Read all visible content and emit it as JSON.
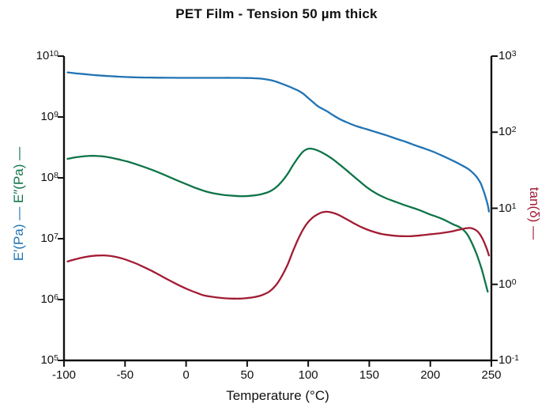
{
  "title": "PET Film - Tension 50 µm thick",
  "colors": {
    "storage": "#2173b3",
    "loss": "#0e7448",
    "tan_delta": "#a21b33",
    "axis": "#111111",
    "background": "#ffffff"
  },
  "axes": {
    "x": {
      "label": "Temperature (°C)",
      "ticks": [
        {
          "label": "-100",
          "value": -100
        },
        {
          "label": "-50",
          "value": -50
        },
        {
          "label": "0",
          "value": 0
        },
        {
          "label": "50",
          "value": 50
        },
        {
          "label": "100",
          "value": 100
        },
        {
          "label": "150",
          "value": 150
        },
        {
          "label": "200",
          "value": 200
        },
        {
          "label": "250",
          "value": 250
        }
      ]
    },
    "left": {
      "parts": [
        {
          "text": "E′(Pa) —",
          "series": "storage",
          "color": "#2173b3"
        },
        {
          "text": "E″(Pa) —",
          "series": "loss",
          "color": "#0e7448"
        }
      ],
      "exponents": [
        10,
        9,
        8,
        7,
        6,
        5
      ],
      "log_range": [
        5,
        10
      ]
    },
    "right": {
      "label": "tan(δ) —",
      "exponents": [
        3,
        2,
        1,
        0,
        -1
      ],
      "log_range": [
        -1,
        3
      ]
    }
  },
  "chart_data": {
    "type": "line",
    "title": "PET Film - Tension 50 µm thick",
    "xlabel": "Temperature (°C)",
    "x_range": [
      -100,
      250
    ],
    "grid": false,
    "legend": "axis-label-colored-dashes",
    "axes": {
      "left": {
        "label": "E′(Pa), E″(Pa)",
        "scale": "log",
        "range_log10": [
          5,
          10
        ]
      },
      "right": {
        "label": "tan(δ)",
        "scale": "log",
        "range_log10": [
          -1,
          3
        ]
      }
    },
    "series": [
      {
        "name": "E′ storage modulus (Pa)",
        "axis": "left",
        "color": "#2173b3",
        "points": [
          [
            -97,
            5400000000.0
          ],
          [
            -90,
            5200000000.0
          ],
          [
            -83,
            5050000000.0
          ],
          [
            -76,
            4900000000.0
          ],
          [
            -69,
            4780000000.0
          ],
          [
            -62,
            4680000000.0
          ],
          [
            -55,
            4600000000.0
          ],
          [
            -48,
            4530000000.0
          ],
          [
            -41,
            4480000000.0
          ],
          [
            -34,
            4450000000.0
          ],
          [
            -27,
            4430000000.0
          ],
          [
            -20,
            4420000000.0
          ],
          [
            -13,
            4410000000.0
          ],
          [
            -6,
            4400000000.0
          ],
          [
            1,
            4400000000.0
          ],
          [
            8,
            4400000000.0
          ],
          [
            15,
            4400000000.0
          ],
          [
            22,
            4400000000.0
          ],
          [
            29,
            4400000000.0
          ],
          [
            36,
            4400000000.0
          ],
          [
            43,
            4390000000.0
          ],
          [
            50,
            4370000000.0
          ],
          [
            56,
            4330000000.0
          ],
          [
            62,
            4250000000.0
          ],
          [
            67,
            4100000000.0
          ],
          [
            72,
            3900000000.0
          ],
          [
            77,
            3600000000.0
          ],
          [
            82,
            3300000000.0
          ],
          [
            87,
            3000000000.0
          ],
          [
            92,
            2700000000.0
          ],
          [
            96,
            2400000000.0
          ],
          [
            100,
            2050000000.0
          ],
          [
            104,
            1750000000.0
          ],
          [
            108,
            1500000000.0
          ],
          [
            112,
            1350000000.0
          ],
          [
            116,
            1220000000.0
          ],
          [
            120,
            1080000000.0
          ],
          [
            126,
            920000000.0
          ],
          [
            132,
            810000000.0
          ],
          [
            140,
            700000000.0
          ],
          [
            148,
            630000000.0
          ],
          [
            156,
            560000000.0
          ],
          [
            164,
            500000000.0
          ],
          [
            172,
            440000000.0
          ],
          [
            180,
            390000000.0
          ],
          [
            188,
            340000000.0
          ],
          [
            196,
            300000000.0
          ],
          [
            204,
            260000000.0
          ],
          [
            212,
            220000000.0
          ],
          [
            220,
            185000000.0
          ],
          [
            226,
            160000000.0
          ],
          [
            231,
            140000000.0
          ],
          [
            235,
            120000000.0
          ],
          [
            238,
            103000000.0
          ],
          [
            241,
            83000000.0
          ],
          [
            243,
            66000000.0
          ],
          [
            245,
            50000000.0
          ],
          [
            247,
            36000000.0
          ],
          [
            248,
            28000000.0
          ]
        ]
      },
      {
        "name": "E″ loss modulus (Pa)",
        "axis": "left",
        "color": "#0e7448",
        "points": [
          [
            -97,
            205000000.0
          ],
          [
            -90,
            218000000.0
          ],
          [
            -83,
            227000000.0
          ],
          [
            -76,
            230000000.0
          ],
          [
            -69,
            226000000.0
          ],
          [
            -62,
            215000000.0
          ],
          [
            -55,
            200000000.0
          ],
          [
            -48,
            185000000.0
          ],
          [
            -40,
            165000000.0
          ],
          [
            -32,
            145000000.0
          ],
          [
            -24,
            126000000.0
          ],
          [
            -16,
            108000000.0
          ],
          [
            -8,
            92000000.0
          ],
          [
            0,
            79000000.0
          ],
          [
            8,
            68000000.0
          ],
          [
            16,
            60000000.0
          ],
          [
            24,
            55000000.0
          ],
          [
            32,
            52000000.0
          ],
          [
            40,
            50500000.0
          ],
          [
            48,
            50000000.0
          ],
          [
            56,
            51500000.0
          ],
          [
            62,
            54000000.0
          ],
          [
            68,
            59000000.0
          ],
          [
            73,
            68000000.0
          ],
          [
            78,
            85000000.0
          ],
          [
            83,
            115000000.0
          ],
          [
            87,
            155000000.0
          ],
          [
            91,
            205000000.0
          ],
          [
            95,
            260000000.0
          ],
          [
            98,
            290000000.0
          ],
          [
            101,
            302000000.0
          ],
          [
            104,
            298000000.0
          ],
          [
            108,
            280000000.0
          ],
          [
            113,
            250000000.0
          ],
          [
            119,
            210000000.0
          ],
          [
            125,
            170000000.0
          ],
          [
            132,
            130000000.0
          ],
          [
            140,
            95000000.0
          ],
          [
            148,
            70000000.0
          ],
          [
            156,
            55000000.0
          ],
          [
            164,
            46000000.0
          ],
          [
            172,
            40000000.0
          ],
          [
            180,
            35000000.0
          ],
          [
            190,
            30000000.0
          ],
          [
            200,
            25000000.0
          ],
          [
            210,
            21000000.0
          ],
          [
            218,
            17500000.0
          ],
          [
            225,
            15000000.0
          ],
          [
            230,
            12000000.0
          ],
          [
            234,
            8500000.0
          ],
          [
            238,
            5500000.0
          ],
          [
            242,
            3200000.0
          ],
          [
            245,
            1900000.0
          ],
          [
            247,
            1350000.0
          ]
        ]
      },
      {
        "name": "tan(δ)",
        "axis": "right",
        "color": "#a21b33",
        "points": [
          [
            -97,
            2.0
          ],
          [
            -90,
            2.15
          ],
          [
            -83,
            2.28
          ],
          [
            -76,
            2.37
          ],
          [
            -70,
            2.4
          ],
          [
            -64,
            2.38
          ],
          [
            -58,
            2.3
          ],
          [
            -52,
            2.18
          ],
          [
            -46,
            2.02
          ],
          [
            -40,
            1.85
          ],
          [
            -34,
            1.67
          ],
          [
            -28,
            1.5
          ],
          [
            -22,
            1.33
          ],
          [
            -16,
            1.18
          ],
          [
            -10,
            1.05
          ],
          [
            -4,
            0.94
          ],
          [
            2,
            0.85
          ],
          [
            8,
            0.78
          ],
          [
            14,
            0.72
          ],
          [
            20,
            0.69
          ],
          [
            26,
            0.67
          ],
          [
            32,
            0.655
          ],
          [
            38,
            0.65
          ],
          [
            44,
            0.65
          ],
          [
            50,
            0.66
          ],
          [
            56,
            0.68
          ],
          [
            62,
            0.72
          ],
          [
            68,
            0.8
          ],
          [
            73,
            0.95
          ],
          [
            78,
            1.25
          ],
          [
            83,
            1.8
          ],
          [
            87,
            2.6
          ],
          [
            91,
            3.7
          ],
          [
            95,
            5.0
          ],
          [
            99,
            6.3
          ],
          [
            103,
            7.4
          ],
          [
            107,
            8.2
          ],
          [
            111,
            8.8
          ],
          [
            115,
            9.0
          ],
          [
            119,
            8.8
          ],
          [
            124,
            8.3
          ],
          [
            130,
            7.4
          ],
          [
            137,
            6.4
          ],
          [
            144,
            5.6
          ],
          [
            152,
            5.0
          ],
          [
            160,
            4.6
          ],
          [
            168,
            4.4
          ],
          [
            176,
            4.3
          ],
          [
            184,
            4.3
          ],
          [
            192,
            4.4
          ],
          [
            200,
            4.55
          ],
          [
            208,
            4.7
          ],
          [
            216,
            4.9
          ],
          [
            223,
            5.2
          ],
          [
            229,
            5.45
          ],
          [
            233,
            5.5
          ],
          [
            237,
            5.2
          ],
          [
            240,
            4.7
          ],
          [
            243,
            3.9
          ],
          [
            246,
            3.0
          ],
          [
            248,
            2.4
          ]
        ]
      }
    ]
  }
}
